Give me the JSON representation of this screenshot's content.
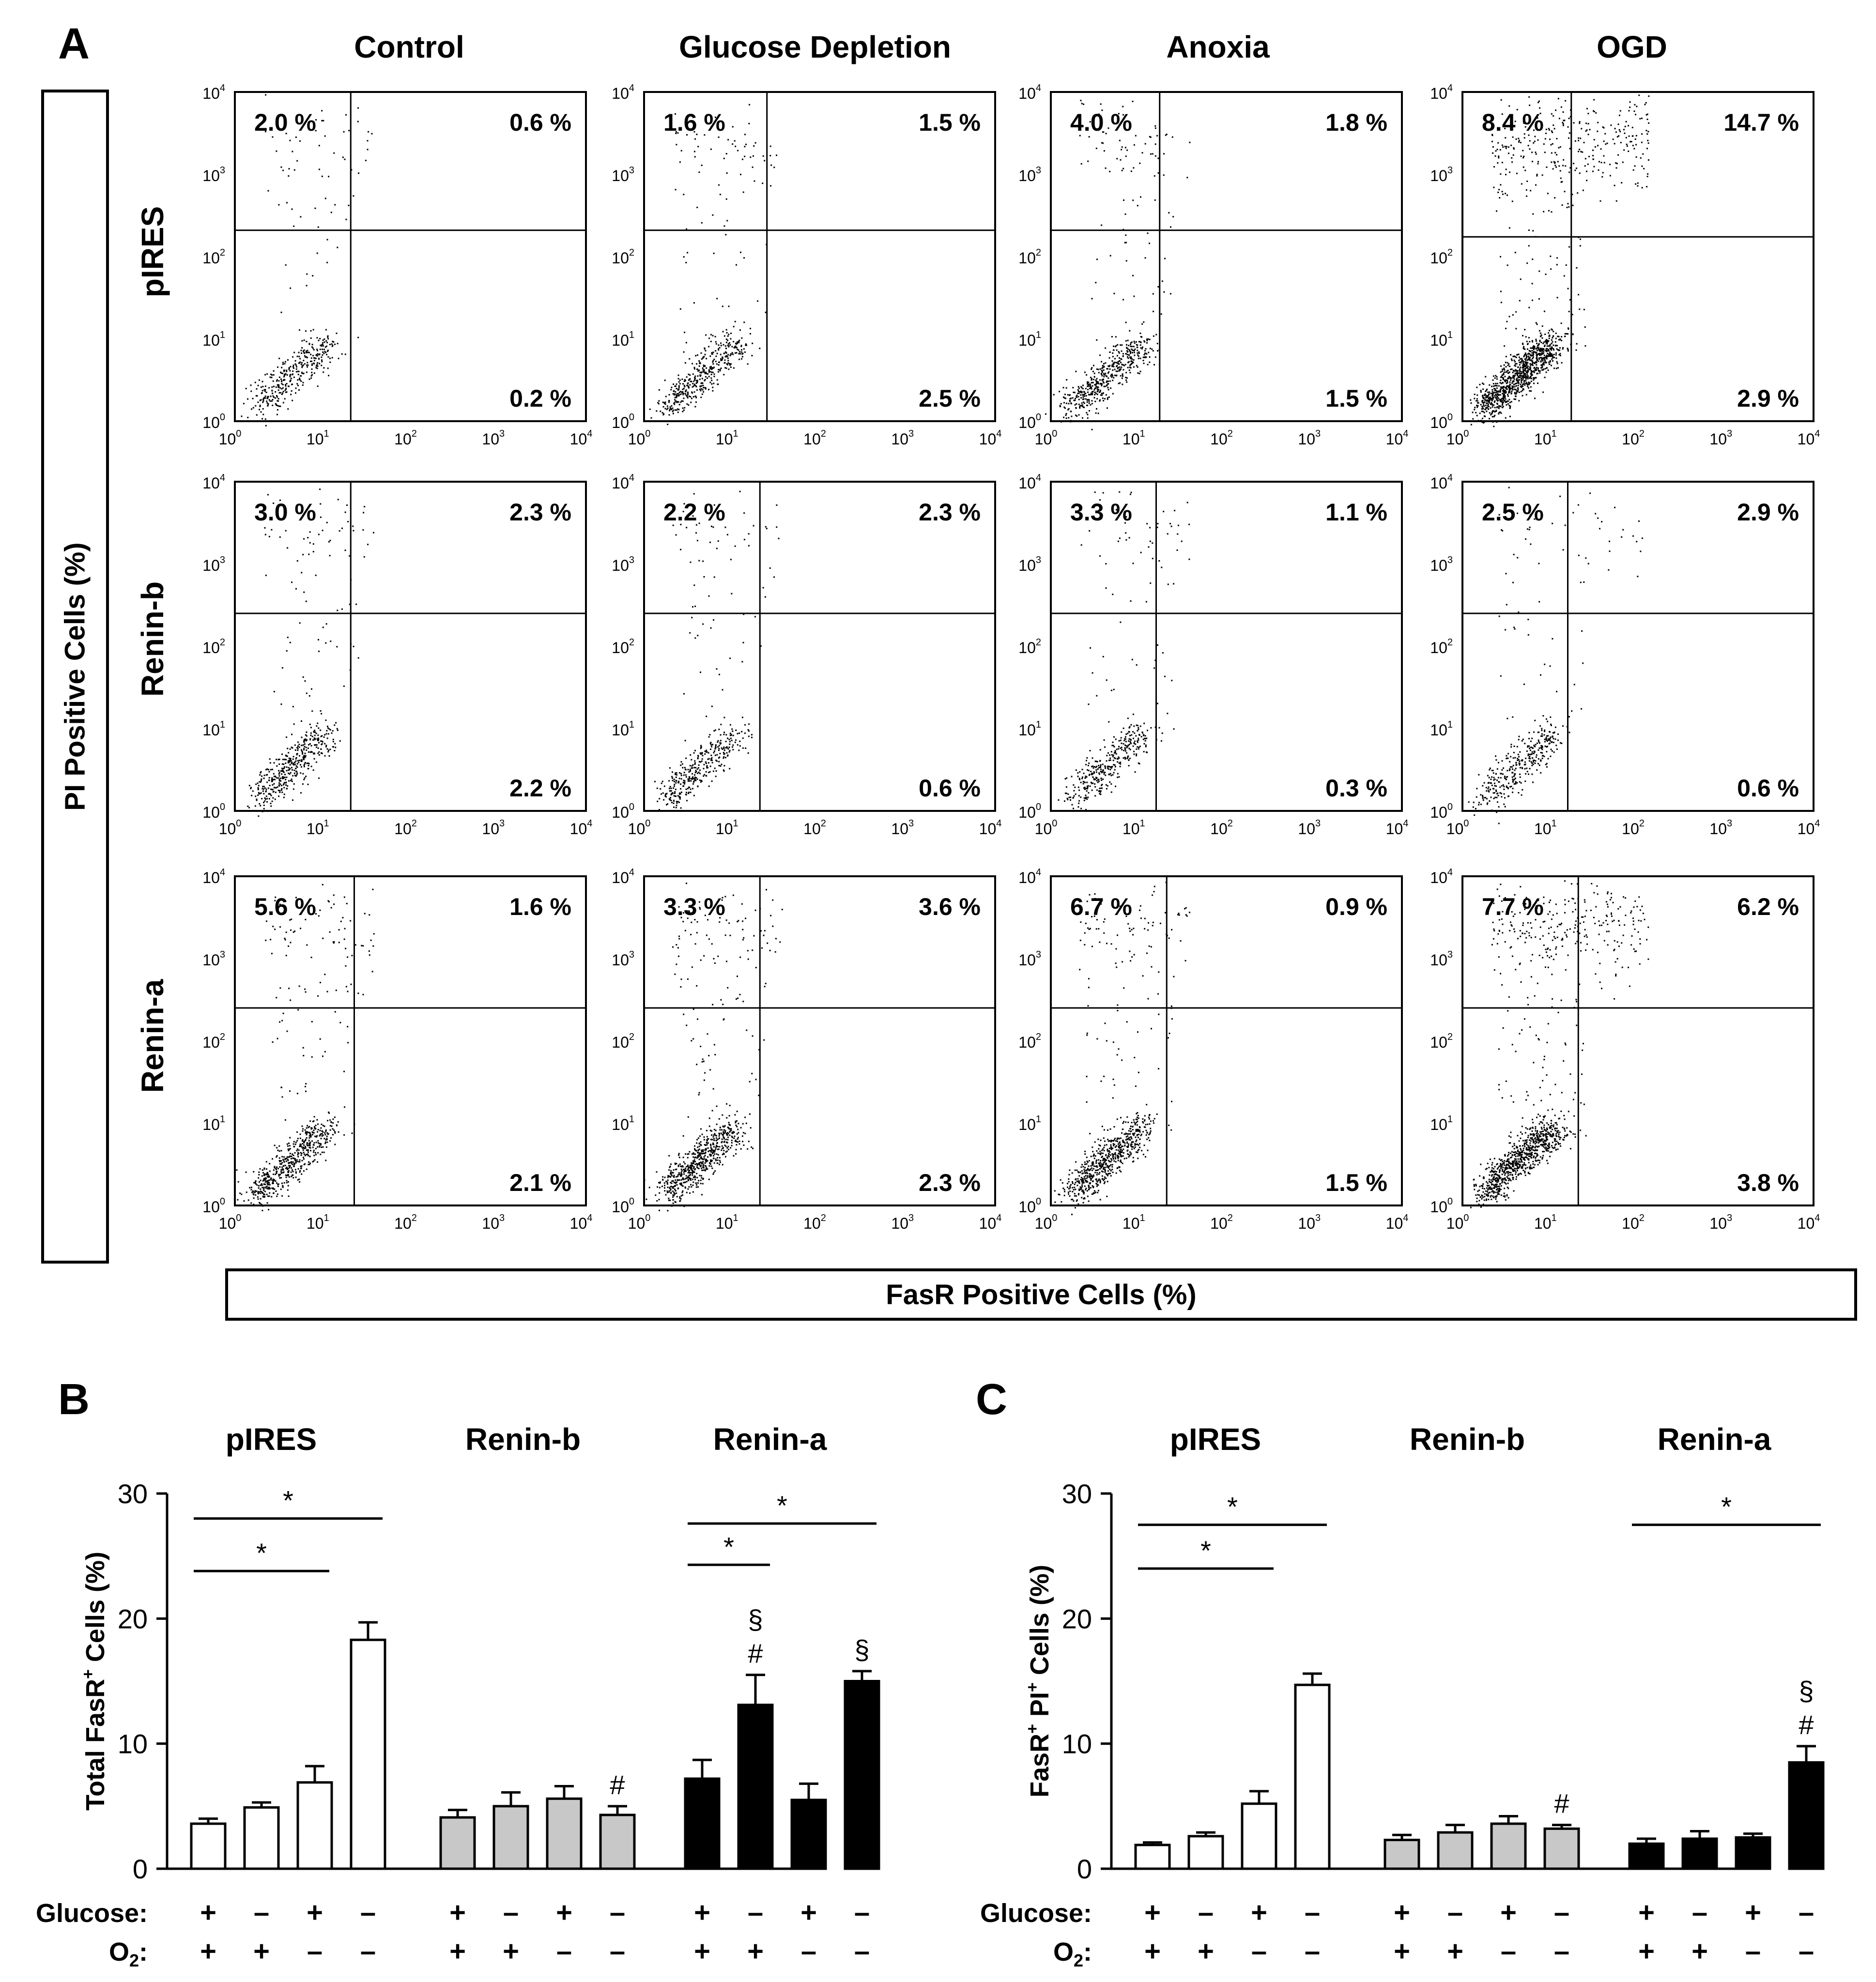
{
  "panels": {
    "a": "A",
    "b": "B",
    "c": "C"
  },
  "panel_a": {
    "conditions": [
      "Control",
      "Glucose Depletion",
      "Anoxia",
      "OGD"
    ],
    "rows": [
      "pIRES",
      "Renin-b",
      "Renin-a"
    ],
    "y_axis_label": "PI Positive Cells (%)",
    "x_axis_label": "FasR Positive Cells (%)",
    "log_ticks": [
      "10",
      "10",
      "10",
      "10",
      "10"
    ],
    "log_exponents": [
      "0",
      "1",
      "2",
      "3",
      "4"
    ],
    "quadrants": [
      [
        [
          "2.0 %",
          "0.6 %",
          "0.2 %"
        ],
        [
          "1.6 %",
          "1.5 %",
          "2.5 %"
        ],
        [
          "4.0 %",
          "1.8 %",
          "1.5 %"
        ],
        [
          "8.4 %",
          "14.7 %",
          "2.9 %"
        ]
      ],
      [
        [
          "3.0 %",
          "2.3 %",
          "2.2 %"
        ],
        [
          "2.2 %",
          "2.3 %",
          "0.6 %"
        ],
        [
          "3.3 %",
          "1.1 %",
          "0.3 %"
        ],
        [
          "2.5 %",
          "2.9 %",
          "0.6 %"
        ]
      ],
      [
        [
          "5.6 %",
          "1.6 %",
          "2.1 %"
        ],
        [
          "3.3 %",
          "3.6 %",
          "2.3 %"
        ],
        [
          "6.7 %",
          "0.9 %",
          "1.5 %"
        ],
        [
          "7.7 %",
          "6.2 %",
          "3.8 %"
        ]
      ]
    ]
  },
  "treatment_labels": {
    "glucose": "Glucose:",
    "o2_main": "O",
    "o2_sub": "2",
    "o2_colon": ":",
    "glucose_signs": [
      "+",
      "–",
      "+",
      "–"
    ],
    "o2_signs": [
      "+",
      "+",
      "–",
      "–"
    ]
  },
  "chart_data": [
    {
      "type": "bar",
      "panel": "B",
      "ylabel_main": "Total FasR",
      "ylabel_sup": "+",
      "ylabel_end": " Cells (%)",
      "ylim": [
        0,
        30
      ],
      "yticks": [
        "0",
        "10",
        "20",
        "30"
      ],
      "groups": [
        "pIRES",
        "Renin-b",
        "Renin-a"
      ],
      "group_colors": [
        "#ffffff",
        "#c8c8c8",
        "#000000"
      ],
      "series": [
        {
          "name": "pIRES",
          "values": [
            3.6,
            4.9,
            6.9,
            18.3
          ],
          "errors": [
            0.4,
            0.4,
            1.3,
            1.4
          ]
        },
        {
          "name": "Renin-b",
          "values": [
            4.1,
            5.0,
            5.6,
            4.3
          ],
          "errors": [
            0.6,
            1.1,
            1.0,
            0.7
          ]
        },
        {
          "name": "Renin-a",
          "values": [
            7.2,
            13.1,
            5.5,
            15.0
          ],
          "errors": [
            1.5,
            2.4,
            1.3,
            0.8
          ]
        }
      ],
      "bar_marks": [
        {
          "group": 1,
          "bar": 3,
          "text": [
            "#"
          ]
        },
        {
          "group": 2,
          "bar": 1,
          "text": [
            "#",
            "§"
          ]
        },
        {
          "group": 2,
          "bar": 3,
          "text": [
            "§"
          ]
        }
      ],
      "significance": [
        {
          "group": 0,
          "from": 0,
          "to": 3,
          "value": 28.0,
          "label": "*"
        },
        {
          "group": 0,
          "from": 0,
          "to": 2,
          "value": 23.8,
          "label": "*"
        },
        {
          "group": 2,
          "from": 0,
          "to": 3,
          "value": 27.6,
          "label": "*"
        },
        {
          "group": 2,
          "from": 0,
          "to": 1,
          "value": 24.3,
          "label": "*"
        }
      ]
    },
    {
      "type": "bar",
      "panel": "C",
      "ylabel_main": "FasR",
      "ylabel_sup": "+",
      "ylabel_mid": " PI",
      "ylabel_sup2": "+",
      "ylabel_end": " Cells (%)",
      "ylim": [
        0,
        30
      ],
      "yticks": [
        "0",
        "10",
        "20",
        "30"
      ],
      "groups": [
        "pIRES",
        "Renin-b",
        "Renin-a"
      ],
      "group_colors": [
        "#ffffff",
        "#c8c8c8",
        "#000000"
      ],
      "series": [
        {
          "name": "pIRES",
          "values": [
            1.9,
            2.6,
            5.2,
            14.7
          ],
          "errors": [
            0.2,
            0.3,
            1.0,
            0.9
          ]
        },
        {
          "name": "Renin-b",
          "values": [
            2.3,
            2.9,
            3.6,
            3.2
          ],
          "errors": [
            0.4,
            0.6,
            0.6,
            0.3
          ]
        },
        {
          "name": "Renin-a",
          "values": [
            2.0,
            2.4,
            2.5,
            8.5
          ],
          "errors": [
            0.4,
            0.6,
            0.3,
            1.3
          ]
        }
      ],
      "bar_marks": [
        {
          "group": 1,
          "bar": 3,
          "text": [
            "#"
          ]
        },
        {
          "group": 2,
          "bar": 3,
          "text": [
            "#",
            "§"
          ]
        }
      ],
      "significance": [
        {
          "group": 0,
          "from": 0,
          "to": 3,
          "value": 27.5,
          "label": "*"
        },
        {
          "group": 0,
          "from": 0,
          "to": 2,
          "value": 24.0,
          "label": "*"
        },
        {
          "group": 2,
          "from": 0,
          "to": 3,
          "value": 27.5,
          "label": "*"
        }
      ]
    }
  ]
}
